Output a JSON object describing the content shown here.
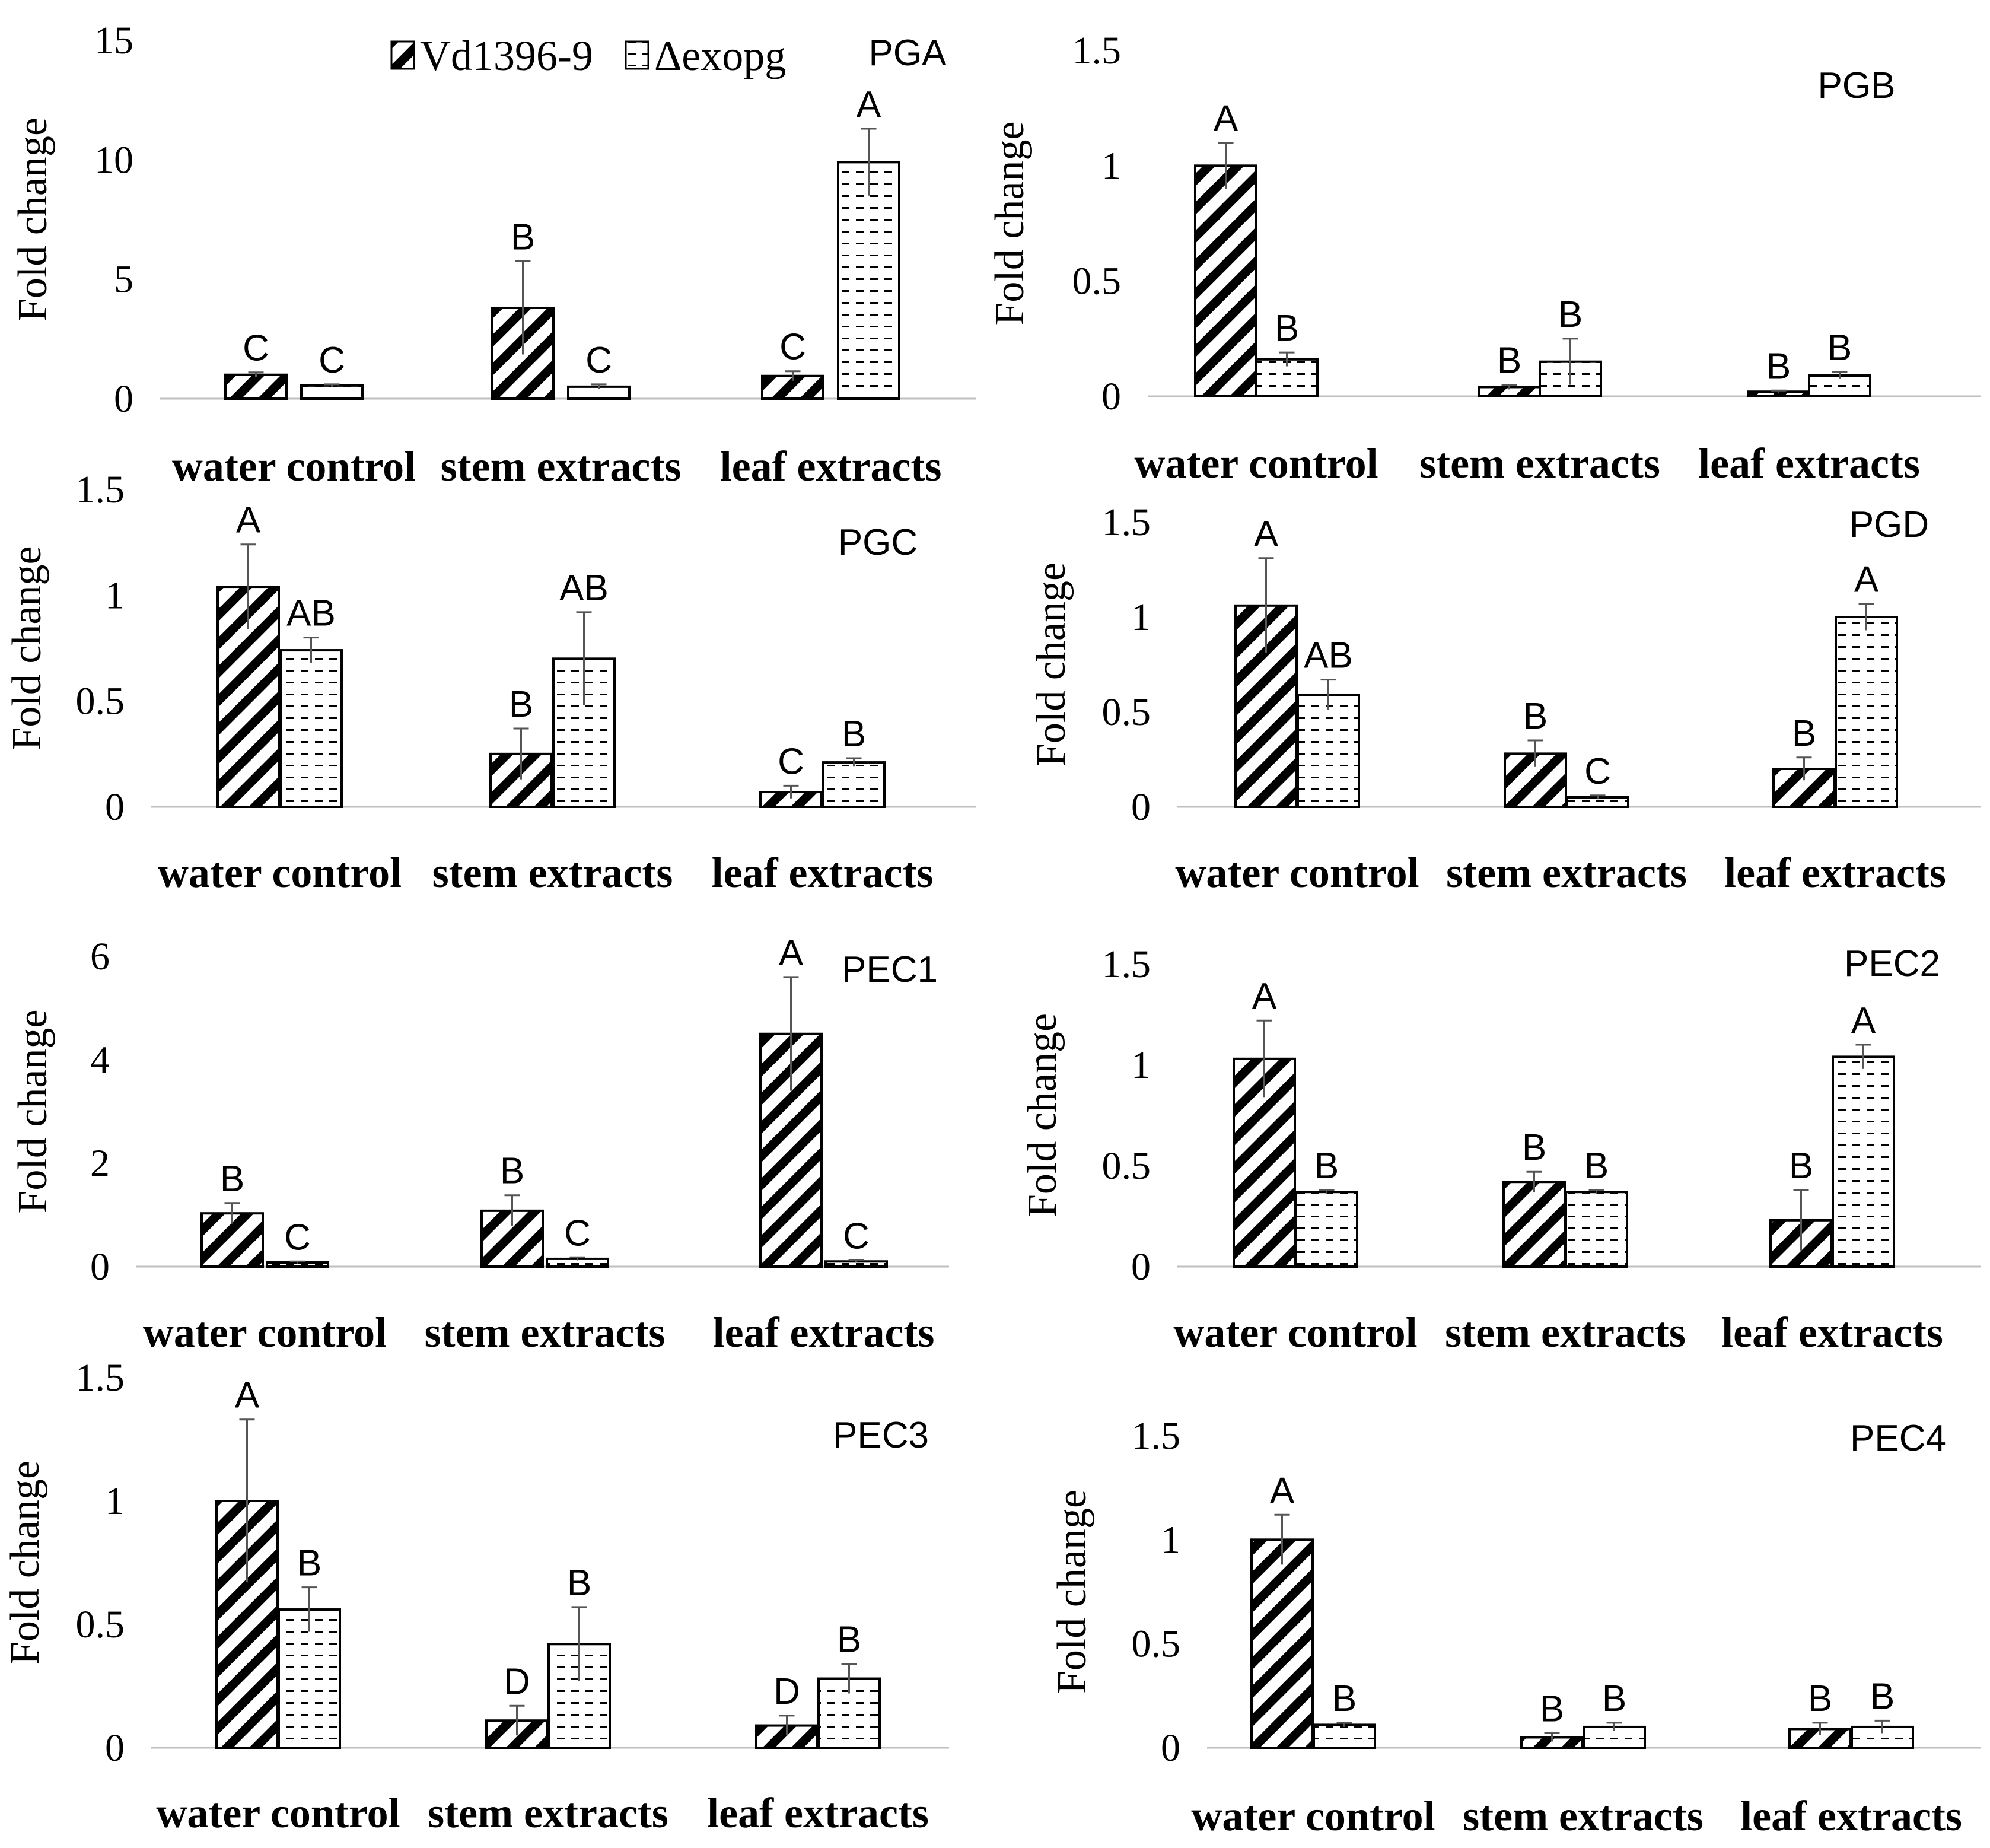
{
  "legend": {
    "series": [
      {
        "name": "Vd1396-9",
        "pattern": "diagonal-hatch"
      },
      {
        "name": "Δexopg",
        "pattern": "dashed-horizontal"
      }
    ]
  },
  "chart_data": [
    {
      "type": "bar",
      "title": "PGA",
      "ylabel": "Fold change",
      "categories": [
        "water control",
        "stem extracts",
        "leaf extracts"
      ],
      "ylim": [
        0,
        15
      ],
      "yticks": [
        0,
        5,
        10,
        15
      ],
      "series": [
        {
          "name": "Vd1396-9",
          "values": [
            1.0,
            3.8,
            0.95
          ],
          "errors": [
            0.1,
            1.95,
            0.2
          ],
          "letters": [
            "C",
            "B",
            "C"
          ]
        },
        {
          "name": "Δexopg",
          "values": [
            0.55,
            0.5,
            9.9
          ],
          "errors": [
            0.05,
            0.1,
            1.4
          ],
          "letters": [
            "C",
            "C",
            "A"
          ]
        }
      ]
    },
    {
      "type": "bar",
      "title": "PGB",
      "ylabel": "Fold change",
      "categories": [
        "water control",
        "stem extracts",
        "leaf extracts"
      ],
      "ylim": [
        0,
        1.5
      ],
      "yticks": [
        0,
        0.5,
        1,
        1.5
      ],
      "series": [
        {
          "name": "Vd1396-9",
          "values": [
            1.0,
            0.04,
            0.02
          ],
          "errors": [
            0.1,
            0.01,
            0.005
          ],
          "letters": [
            "A",
            "B",
            "B"
          ]
        },
        {
          "name": "Δexopg",
          "values": [
            0.16,
            0.15,
            0.09
          ],
          "errors": [
            0.03,
            0.1,
            0.015
          ],
          "letters": [
            "B",
            "B",
            "B"
          ]
        }
      ]
    },
    {
      "type": "bar",
      "title": "PGC",
      "ylabel": "Fold change",
      "categories": [
        "water control",
        "stem extracts",
        "leaf extracts"
      ],
      "ylim": [
        0,
        1.5
      ],
      "yticks": [
        0,
        0.5,
        1,
        1.5
      ],
      "series": [
        {
          "name": "Vd1396-9",
          "values": [
            1.04,
            0.25,
            0.07
          ],
          "errors": [
            0.2,
            0.12,
            0.03
          ],
          "letters": [
            "A",
            "B",
            "C"
          ]
        },
        {
          "name": "Δexopg",
          "values": [
            0.74,
            0.7,
            0.21
          ],
          "errors": [
            0.06,
            0.22,
            0.02
          ],
          "letters": [
            "AB",
            "AB",
            "B"
          ]
        }
      ]
    },
    {
      "type": "bar",
      "title": "PGD",
      "ylabel": "Fold change",
      "categories": [
        "water control",
        "stem extracts",
        "leaf extracts"
      ],
      "ylim": [
        0,
        1.5
      ],
      "yticks": [
        0,
        0.5,
        1,
        1.5
      ],
      "series": [
        {
          "name": "Vd1396-9",
          "values": [
            1.06,
            0.28,
            0.2
          ],
          "errors": [
            0.25,
            0.07,
            0.06
          ],
          "letters": [
            "A",
            "B",
            "B"
          ]
        },
        {
          "name": "Δexopg",
          "values": [
            0.59,
            0.05,
            1.0
          ],
          "errors": [
            0.08,
            0.01,
            0.07
          ],
          "letters": [
            "AB",
            "C",
            "A"
          ]
        }
      ]
    },
    {
      "type": "bar",
      "title": "PEC1",
      "ylabel": "Fold change",
      "categories": [
        "water control",
        "stem extracts",
        "leaf extracts"
      ],
      "ylim": [
        0,
        6
      ],
      "yticks": [
        0,
        2,
        4,
        6
      ],
      "series": [
        {
          "name": "Vd1396-9",
          "values": [
            1.03,
            1.08,
            4.5
          ],
          "errors": [
            0.2,
            0.3,
            1.1
          ],
          "letters": [
            "B",
            "B",
            "A"
          ]
        },
        {
          "name": "Δexopg",
          "values": [
            0.08,
            0.15,
            0.1
          ],
          "errors": [
            0.02,
            0.03,
            0.02
          ],
          "letters": [
            "C",
            "C",
            "C"
          ]
        }
      ]
    },
    {
      "type": "bar",
      "title": "PEC2",
      "ylabel": "Fold change",
      "categories": [
        "water control",
        "stem extracts",
        "leaf extracts"
      ],
      "ylim": [
        0,
        1.5
      ],
      "yticks": [
        0,
        0.5,
        1,
        1.5
      ],
      "series": [
        {
          "name": "Vd1396-9",
          "values": [
            1.03,
            0.42,
            0.23
          ],
          "errors": [
            0.19,
            0.05,
            0.15
          ],
          "letters": [
            "A",
            "B",
            "B"
          ]
        },
        {
          "name": "Δexopg",
          "values": [
            0.37,
            0.37,
            1.04
          ],
          "errors": [
            0.01,
            0.01,
            0.06
          ],
          "letters": [
            "B",
            "B",
            "A"
          ]
        }
      ]
    },
    {
      "type": "bar",
      "title": "PEC3",
      "ylabel": "Fold change",
      "categories": [
        "water control",
        "stem extracts",
        "leaf extracts"
      ],
      "ylim": [
        0,
        1.5
      ],
      "yticks": [
        0,
        0.5,
        1,
        1.5
      ],
      "series": [
        {
          "name": "Vd1396-9",
          "values": [
            1.0,
            0.11,
            0.09
          ],
          "errors": [
            0.33,
            0.06,
            0.04
          ],
          "letters": [
            "A",
            "D",
            "D"
          ]
        },
        {
          "name": "Δexopg",
          "values": [
            0.56,
            0.42,
            0.28
          ],
          "errors": [
            0.09,
            0.15,
            0.06
          ],
          "letters": [
            "B",
            "B",
            "B"
          ]
        }
      ]
    },
    {
      "type": "bar",
      "title": "PEC4",
      "ylabel": "Fold change",
      "categories": [
        "water control",
        "stem extracts",
        "leaf extracts"
      ],
      "ylim": [
        0,
        1.5
      ],
      "yticks": [
        0,
        0.5,
        1,
        1.5
      ],
      "series": [
        {
          "name": "Vd1396-9",
          "values": [
            1.0,
            0.05,
            0.09
          ],
          "errors": [
            0.12,
            0.02,
            0.03
          ],
          "letters": [
            "A",
            "B",
            "B"
          ]
        },
        {
          "name": "Δexopg",
          "values": [
            0.11,
            0.1,
            0.1
          ],
          "errors": [
            0.01,
            0.02,
            0.03
          ],
          "letters": [
            "B",
            "B",
            "B"
          ]
        }
      ]
    }
  ]
}
